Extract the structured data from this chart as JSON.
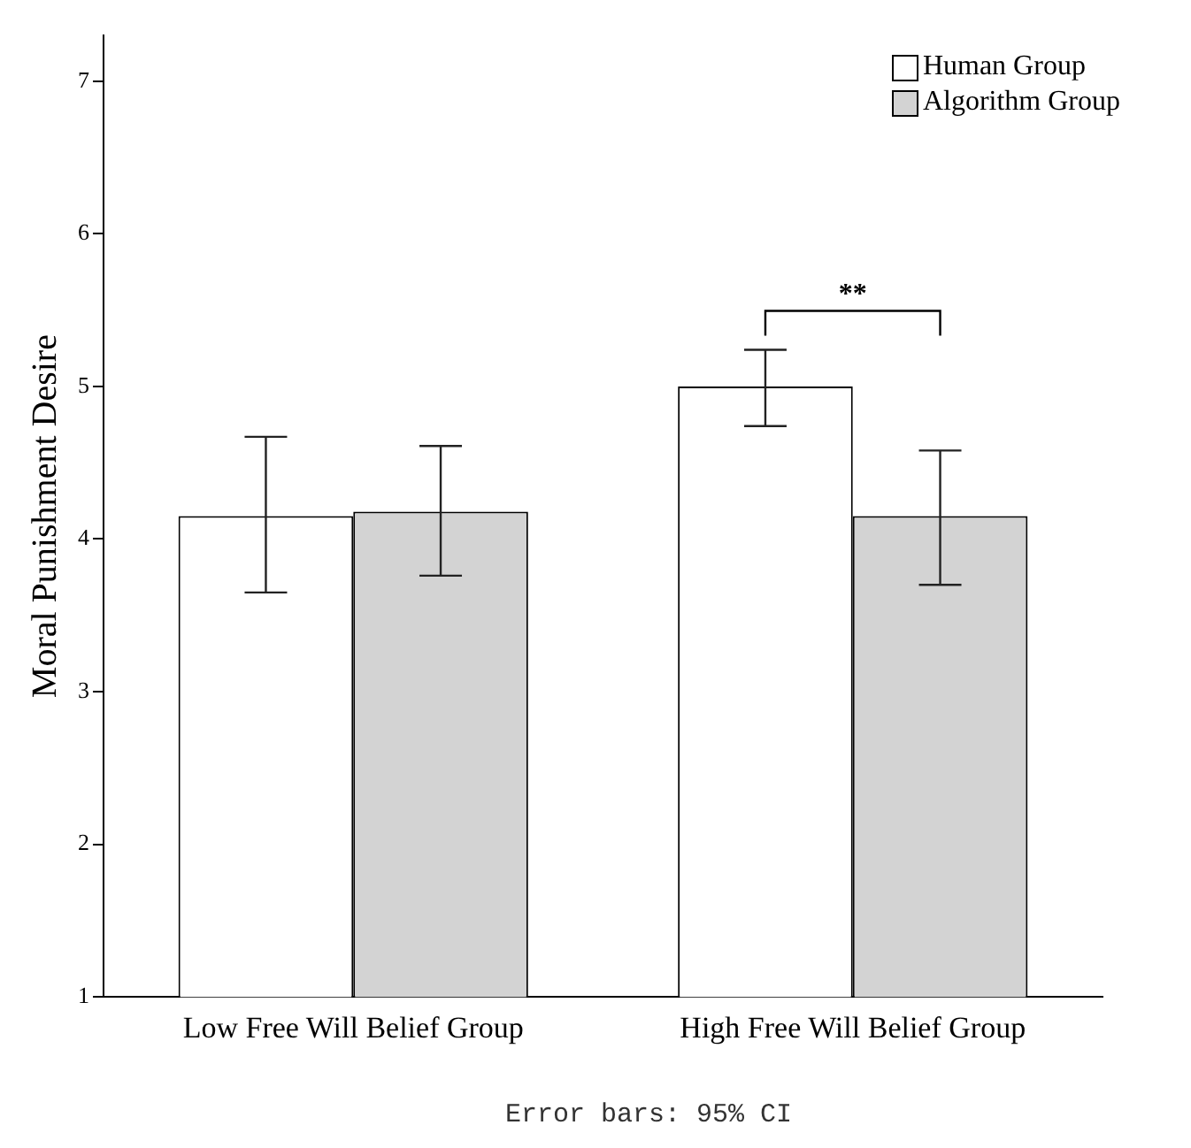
{
  "chart_data": {
    "type": "bar",
    "ylabel": "Moral Punishment Desire",
    "categories": [
      "Low Free Will Belief Group",
      "High Free Will Belief Group"
    ],
    "series": [
      {
        "name": "Human Group",
        "color": "#ffffff",
        "values": [
          4.15,
          5.0
        ],
        "errors": [
          [
            3.65,
            4.67
          ],
          [
            4.74,
            5.24
          ]
        ]
      },
      {
        "name": "Algorithm Group",
        "color": "#d3d3d3",
        "values": [
          4.18,
          4.15
        ],
        "errors": [
          [
            3.76,
            4.61
          ],
          [
            3.7,
            4.58
          ]
        ]
      }
    ],
    "ylim": [
      1,
      7.3
    ],
    "yticks": [
      1,
      2,
      3,
      4,
      5,
      6,
      7
    ],
    "grid": false,
    "legend": "top right",
    "annotations": [
      "**",
      "Error bars: 95% CI"
    ]
  }
}
